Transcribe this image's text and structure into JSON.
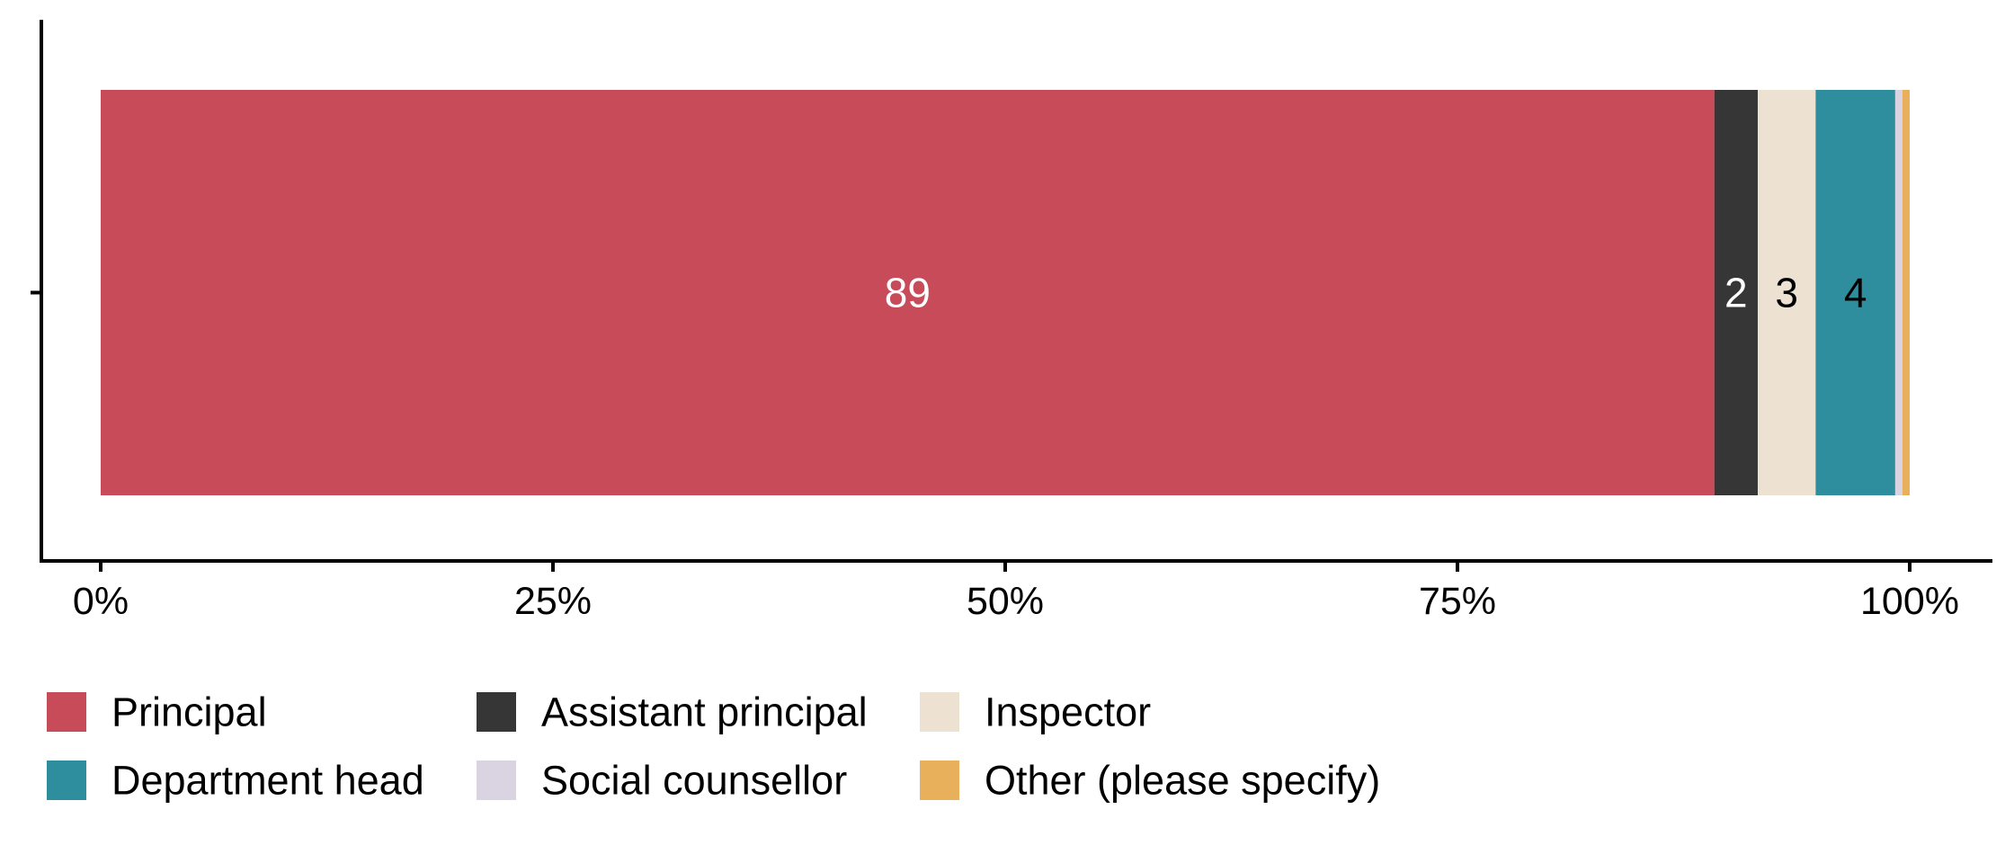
{
  "chart_data": {
    "type": "bar",
    "orientation": "horizontal",
    "stacked": true,
    "title": "",
    "xlabel": "",
    "ylabel": "",
    "xlim": [
      0,
      100
    ],
    "x_ticks": [
      "0%",
      "25%",
      "50%",
      "75%",
      "100%"
    ],
    "x_tick_values": [
      0,
      25,
      50,
      75,
      100
    ],
    "grid": false,
    "legend_position": "bottom",
    "series": [
      {
        "name": "Principal",
        "value": 89.2,
        "label": "89",
        "color": "#c84b5a",
        "label_color": "#ffffff"
      },
      {
        "name": "Assistant principal",
        "value": 2.4,
        "label": "2",
        "color": "#363636",
        "label_color": "#ffffff"
      },
      {
        "name": "Inspector",
        "value": 3.2,
        "label": "3",
        "color": "#ede1d1",
        "label_color": "#000000"
      },
      {
        "name": "Department head",
        "value": 4.4,
        "label": "4",
        "color": "#2f8e9e",
        "label_color": "#000000"
      },
      {
        "name": "Social counsellor",
        "value": 0.4,
        "label": "",
        "color": "#d9d3e2",
        "label_color": "#000000"
      },
      {
        "name": "Other (please specify)",
        "value": 0.4,
        "label": "",
        "color": "#e8b05a",
        "label_color": "#000000"
      }
    ],
    "legend_order": [
      "Principal",
      "Assistant principal",
      "Inspector",
      "Department head",
      "Social counsellor",
      "Other (please specify)"
    ]
  }
}
